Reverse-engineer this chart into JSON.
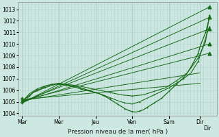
{
  "xlabel": "Pression niveau de la mer( hPa )",
  "bg_color": "#cce8e0",
  "grid_color": "#aacccc",
  "line_color": "#1a6b1a",
  "ylim": [
    1003.8,
    1013.6
  ],
  "yticks": [
    1004,
    1005,
    1006,
    1007,
    1008,
    1009,
    1010,
    1011,
    1012,
    1013
  ],
  "day_positions": [
    0.0,
    1.0,
    2.0,
    3.0,
    4.0,
    4.85,
    5.1
  ],
  "day_labels": [
    "Mar",
    "Mer",
    "Jeu",
    "Ven",
    "Sam",
    "Dir"
  ],
  "xtick_positions": [
    0.0,
    1.0,
    2.0,
    3.0,
    4.0,
    4.85
  ],
  "xtick_labels": [
    "Mar",
    "Mer",
    "Jeu",
    "Ven",
    "Sam",
    "Dir"
  ],
  "xlim": [
    -0.1,
    5.3
  ],
  "vline_positions": [
    0.0,
    1.0,
    2.0,
    3.0,
    4.0,
    4.85
  ],
  "ensemble_lines": [
    {
      "x0": 0.0,
      "y0": 1004.9,
      "x1": 5.1,
      "y1": 1013.2
    },
    {
      "x0": 0.0,
      "y0": 1004.9,
      "x1": 5.1,
      "y1": 1012.3
    },
    {
      "x0": 0.0,
      "y0": 1005.0,
      "x1": 5.1,
      "y1": 1011.3
    },
    {
      "x0": 0.0,
      "y0": 1005.0,
      "x1": 5.1,
      "y1": 1010.0
    },
    {
      "x0": 0.0,
      "y0": 1005.1,
      "x1": 5.1,
      "y1": 1009.2
    },
    {
      "x0": 0.0,
      "y0": 1005.1,
      "x1": 4.85,
      "y1": 1007.5
    },
    {
      "x0": 0.0,
      "y0": 1005.2,
      "x1": 4.85,
      "y1": 1006.6
    }
  ],
  "main_x": [
    0.0,
    0.1,
    0.2,
    0.3,
    0.4,
    0.5,
    0.6,
    0.7,
    0.8,
    0.9,
    1.0,
    1.1,
    1.2,
    1.3,
    1.4,
    1.5,
    1.6,
    1.7,
    1.8,
    1.9,
    2.0,
    2.1,
    2.2,
    2.3,
    2.4,
    2.5,
    2.6,
    2.7,
    2.8,
    2.9,
    3.0,
    3.1,
    3.2,
    3.3,
    3.4,
    3.5,
    3.6,
    3.7,
    3.8,
    3.9,
    4.0,
    4.1,
    4.2,
    4.3,
    4.4,
    4.5,
    4.6,
    4.7,
    4.8,
    4.85,
    5.0,
    5.1
  ],
  "main_y": [
    1004.9,
    1005.2,
    1005.5,
    1005.8,
    1006.0,
    1006.1,
    1006.3,
    1006.4,
    1006.5,
    1006.55,
    1006.6,
    1006.55,
    1006.5,
    1006.4,
    1006.35,
    1006.3,
    1006.2,
    1006.1,
    1006.0,
    1005.9,
    1005.8,
    1005.7,
    1005.55,
    1005.4,
    1005.2,
    1005.0,
    1004.8,
    1004.6,
    1004.4,
    1004.25,
    1004.15,
    1004.1,
    1004.2,
    1004.3,
    1004.5,
    1004.7,
    1004.9,
    1005.1,
    1005.3,
    1005.6,
    1005.9,
    1006.2,
    1006.5,
    1006.8,
    1007.1,
    1007.5,
    1008.0,
    1008.6,
    1009.2,
    1009.8,
    1011.0,
    1012.2
  ],
  "wavy_x": [
    0.0,
    0.2,
    0.4,
    0.6,
    0.8,
    1.0,
    1.2,
    1.4,
    1.6,
    1.8,
    2.0,
    2.2,
    2.4,
    2.6,
    2.8,
    3.0,
    3.2,
    3.4,
    3.6,
    3.8,
    4.0,
    4.2,
    4.4,
    4.6,
    4.8,
    5.0,
    5.1
  ],
  "wavy_y": [
    1005.0,
    1005.7,
    1006.1,
    1006.35,
    1006.5,
    1006.55,
    1006.4,
    1006.3,
    1006.1,
    1005.95,
    1005.8,
    1005.6,
    1005.35,
    1005.1,
    1004.9,
    1004.8,
    1005.0,
    1005.3,
    1005.6,
    1005.9,
    1006.2,
    1006.6,
    1007.0,
    1007.5,
    1008.5,
    1010.5,
    1011.5
  ],
  "wavy2_x": [
    0.0,
    0.3,
    0.6,
    0.9,
    1.2,
    1.5,
    1.8,
    2.1,
    2.4,
    2.7,
    3.0,
    3.3,
    3.6,
    3.9,
    4.2,
    4.5,
    4.8,
    5.0,
    5.1
  ],
  "wavy2_y": [
    1005.1,
    1005.8,
    1006.2,
    1006.5,
    1006.5,
    1006.4,
    1006.2,
    1006.0,
    1005.8,
    1005.6,
    1005.5,
    1005.6,
    1005.9,
    1006.2,
    1006.8,
    1007.5,
    1008.8,
    1010.2,
    1012.5
  ],
  "tri_x": [
    5.1,
    5.1,
    5.1,
    5.1,
    5.1,
    5.1
  ],
  "tri_y": [
    1013.2,
    1012.3,
    1011.3,
    1010.0,
    1009.2,
    1012.2
  ],
  "plus_x": [
    0.0,
    0.0,
    0.0,
    0.0,
    0.0
  ],
  "plus_y": [
    1004.9,
    1005.0,
    1005.1,
    1005.2,
    1005.3
  ]
}
